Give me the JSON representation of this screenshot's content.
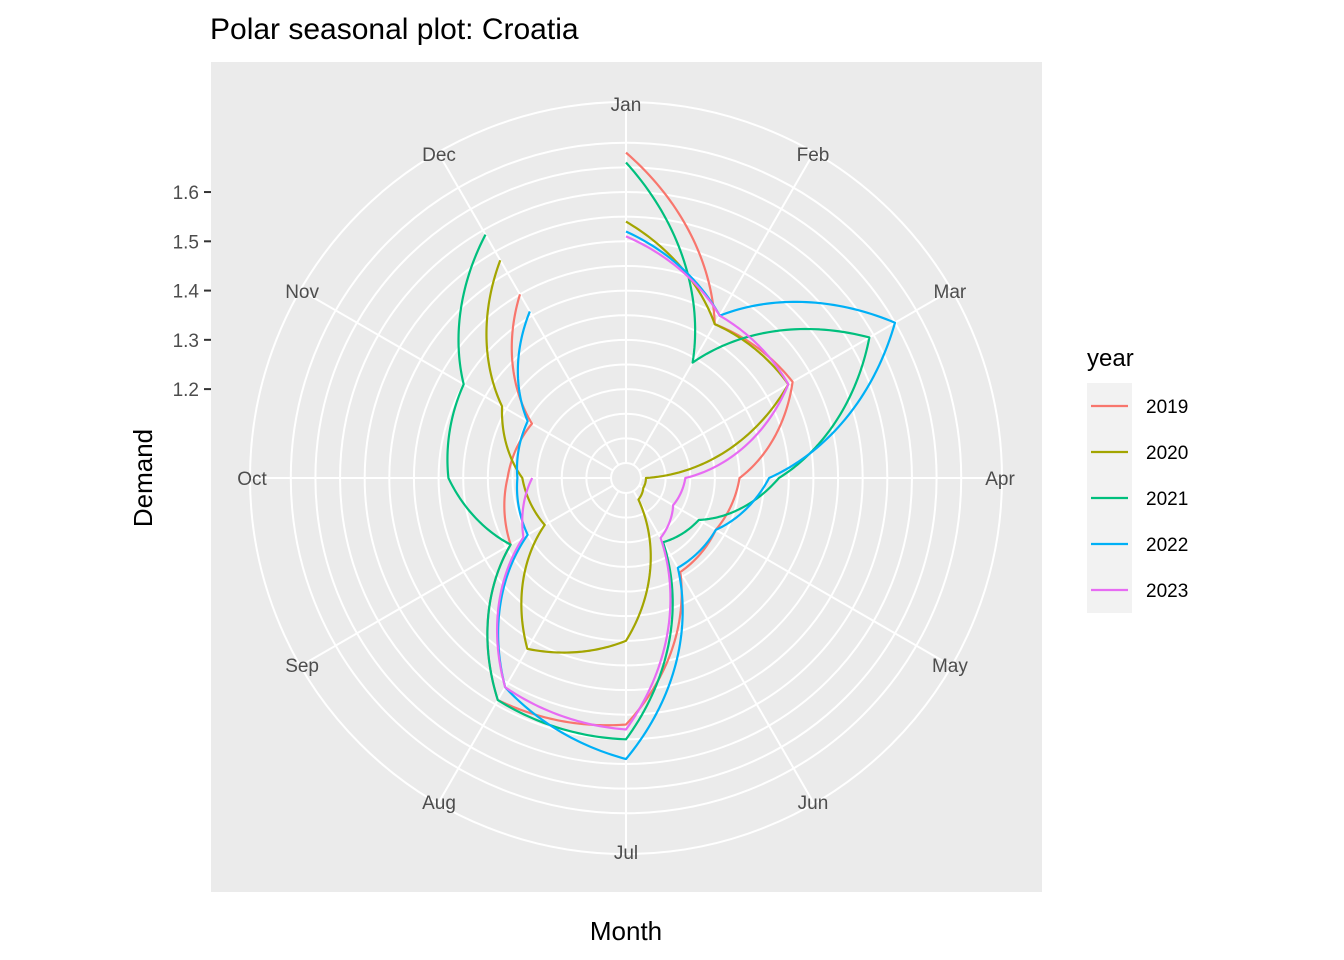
{
  "chart_data": {
    "type": "line",
    "subtype": "polar-seasonal",
    "title": "Polar seasonal plot: Croatia",
    "xlabel": "Month",
    "ylabel": "Demand",
    "categories": [
      "Jan",
      "Feb",
      "Mar",
      "Apr",
      "May",
      "Jun",
      "Jul",
      "Aug",
      "Sep",
      "Oct",
      "Nov",
      "Dec"
    ],
    "y_ticks": [
      1.2,
      1.3,
      1.4,
      1.5,
      1.6
    ],
    "ylim": [
      1.05,
      1.73
    ],
    "grid": true,
    "legend": {
      "title": "year",
      "position": "right"
    },
    "series": [
      {
        "name": "2019",
        "color": "#F8766D",
        "values": [
          1.68,
          1.38,
          1.41,
          1.25,
          1.23,
          1.24,
          1.52,
          1.54,
          1.29,
          1.26,
          1.24,
          1.45
        ]
      },
      {
        "name": "2020",
        "color": "#A3A500",
        "values": [
          1.54,
          1.38,
          1.4,
          1.06,
          1.06,
          1.07,
          1.35,
          1.42,
          1.21,
          1.23,
          1.31,
          1.53
        ]
      },
      {
        "name": "2021",
        "color": "#00BF7D",
        "values": [
          1.66,
          1.29,
          1.59,
          1.33,
          1.19,
          1.17,
          1.55,
          1.54,
          1.29,
          1.38,
          1.4,
          1.59
        ]
      },
      {
        "name": "2022",
        "color": "#00B0F6",
        "values": [
          1.52,
          1.4,
          1.65,
          1.31,
          1.23,
          1.23,
          1.59,
          1.51,
          1.25,
          1.24,
          1.25,
          1.41
        ]
      },
      {
        "name": "2023",
        "color": "#E76BF3",
        "values": [
          1.51,
          1.4,
          1.4,
          1.14,
          1.13,
          1.16,
          1.53,
          1.51,
          1.26,
          1.21,
          null,
          null
        ]
      }
    ]
  }
}
